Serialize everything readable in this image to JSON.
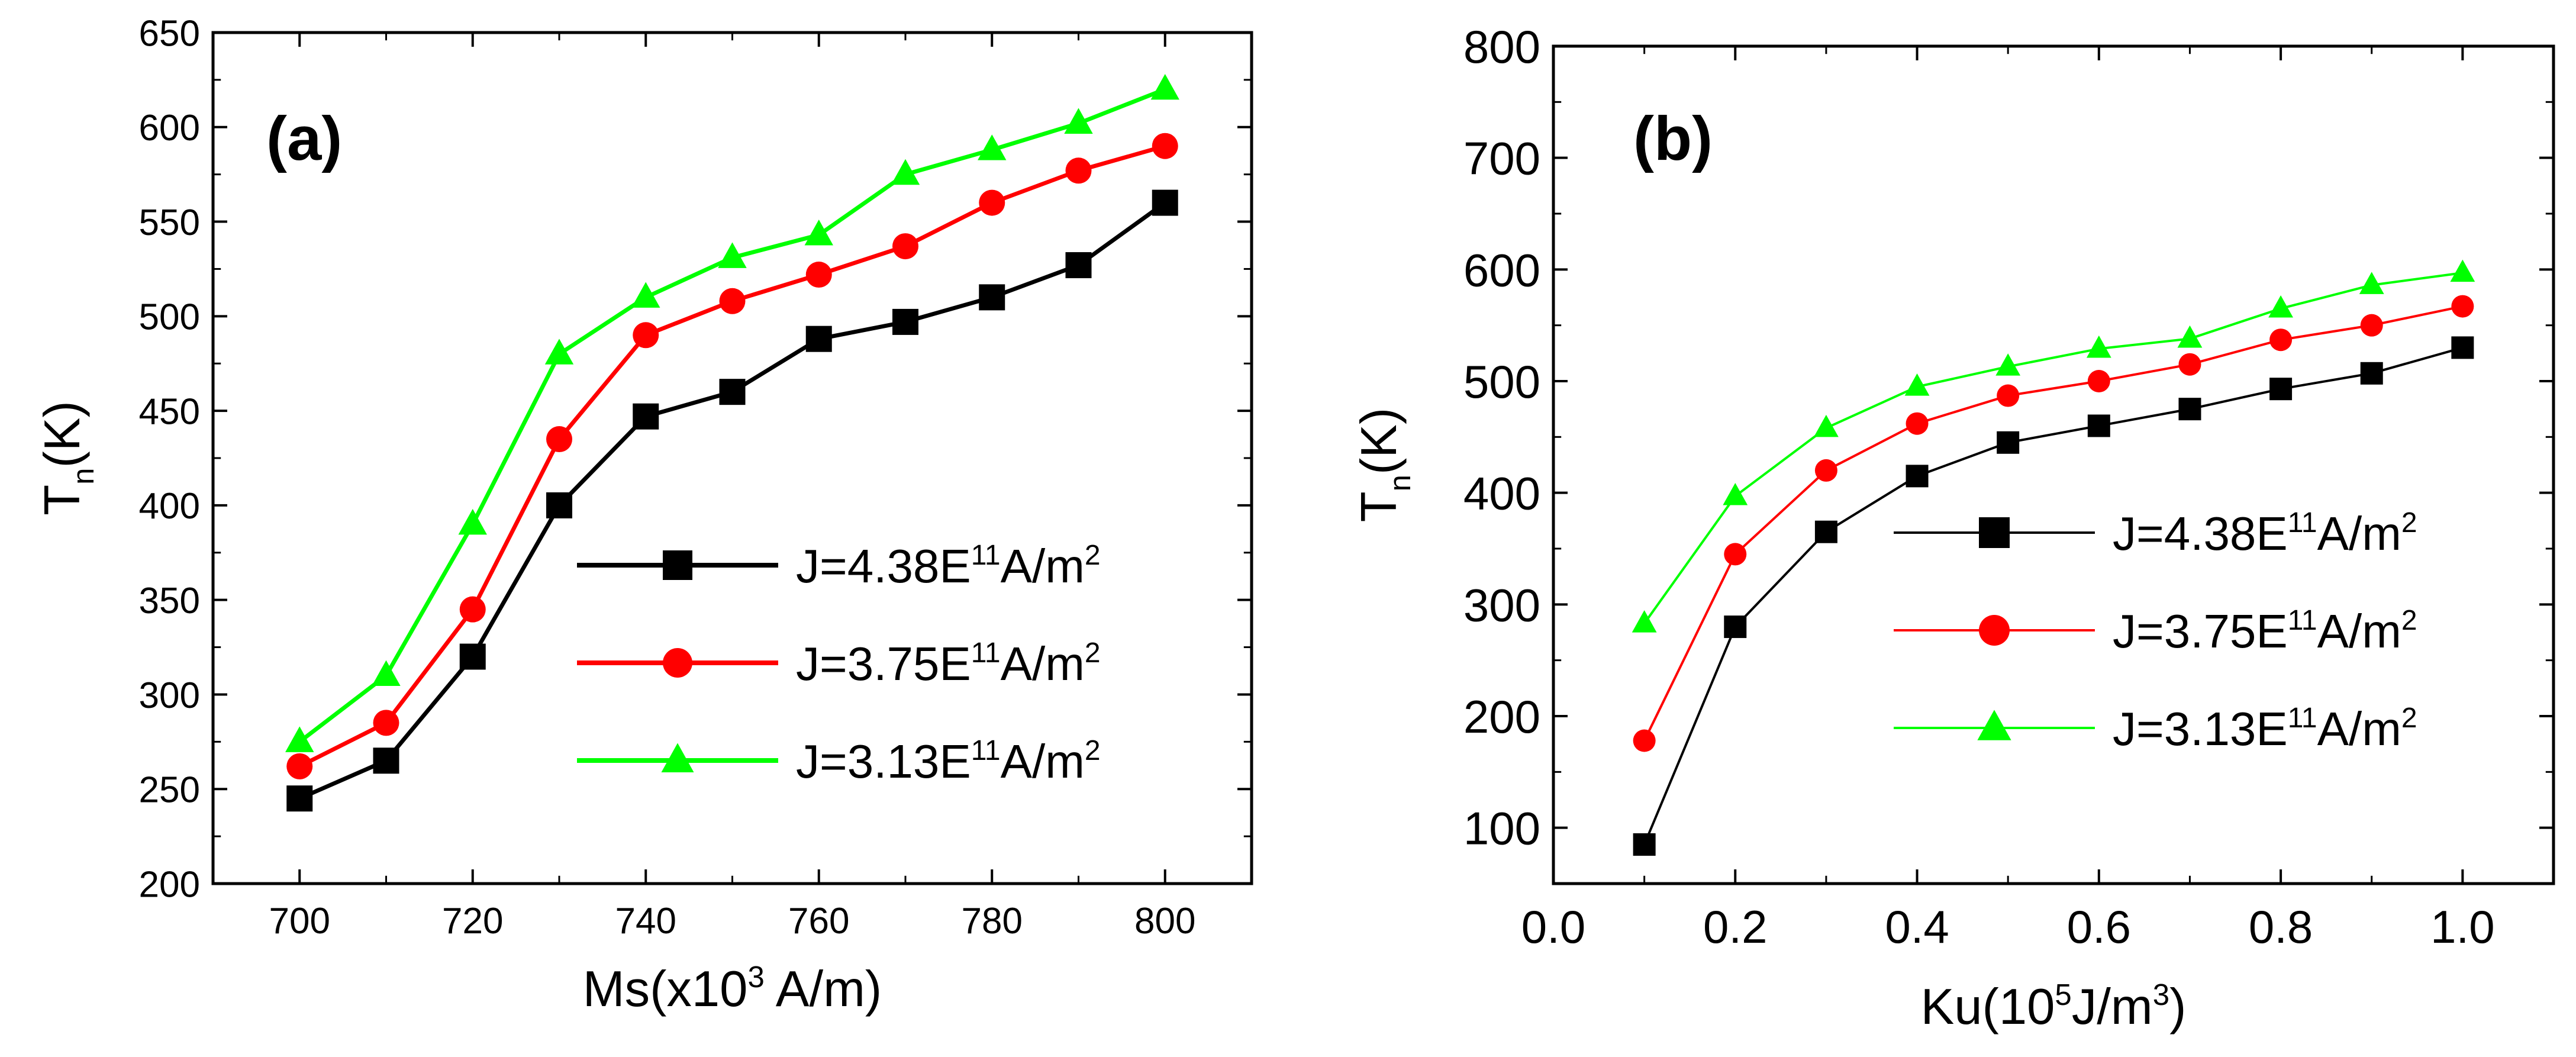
{
  "chart_data": [
    {
      "type": "line",
      "panel_label": "(a)",
      "xlabel": {
        "prefix": "Ms(x10",
        "sup": "3",
        "suffix": " A/m)"
      },
      "ylabel": {
        "main": "T",
        "sub": "n",
        "suffix": "(K)"
      },
      "xlim": [
        690,
        810
      ],
      "ylim": [
        200,
        650
      ],
      "xticks": [
        700,
        720,
        740,
        760,
        780,
        800
      ],
      "yticks": [
        200,
        250,
        300,
        350,
        400,
        450,
        500,
        550,
        600,
        650
      ],
      "x": [
        700,
        710,
        720,
        730,
        740,
        750,
        760,
        770,
        780,
        790,
        800
      ],
      "legend_position": "bottom-right",
      "series": [
        {
          "name": "J=4.38E11A/m2",
          "legend": {
            "prefix": "J=4.38E",
            "sup1": "11",
            "mid": "A/m",
            "sup2": "2"
          },
          "color": "#000000",
          "marker": "square",
          "values": [
            245,
            265,
            320,
            400,
            447,
            460,
            488,
            497,
            510,
            527,
            560
          ]
        },
        {
          "name": "J=3.75E11A/m2",
          "legend": {
            "prefix": "J=3.75E",
            "sup1": "11",
            "mid": "A/m",
            "sup2": "2"
          },
          "color": "#ff0000",
          "marker": "circle",
          "values": [
            262,
            285,
            345,
            435,
            490,
            508,
            522,
            537,
            560,
            577,
            590
          ]
        },
        {
          "name": "J=3.13E11A/m2",
          "legend": {
            "prefix": "J=3.13E",
            "sup1": "11",
            "mid": "A/m",
            "sup2": "2"
          },
          "color": "#00ff00",
          "marker": "triangle",
          "values": [
            275,
            310,
            390,
            480,
            510,
            531,
            543,
            575,
            588,
            602,
            620
          ]
        }
      ]
    },
    {
      "type": "line",
      "panel_label": "(b)",
      "xlabel": {
        "prefix": "Ku(10",
        "sup": "5",
        "suffix": "J/m",
        "sup2": "3",
        "suffix2": ")"
      },
      "ylabel": {
        "main": "T",
        "sub": "n",
        "suffix": "(K)"
      },
      "xlim": [
        0.0,
        1.1
      ],
      "ylim": [
        50,
        800
      ],
      "xticks": [
        "0.0",
        "0.2",
        "0.4",
        "0.6",
        "0.8",
        "1.0"
      ],
      "yticks": [
        100,
        200,
        300,
        400,
        500,
        600,
        700,
        800
      ],
      "x": [
        0.1,
        0.2,
        0.3,
        0.4,
        0.5,
        0.6,
        0.7,
        0.8,
        0.9,
        1.0
      ],
      "legend_position": "center-right",
      "series": [
        {
          "name": "J=4.38E11A/m2",
          "legend": {
            "prefix": "J=4.38E",
            "sup1": "11",
            "mid": "A/m",
            "sup2": "2"
          },
          "color": "#000000",
          "marker": "square",
          "values": [
            85,
            280,
            365,
            415,
            445,
            460,
            475,
            493,
            507,
            530
          ]
        },
        {
          "name": "J=3.75E11A/m2",
          "legend": {
            "prefix": "J=3.75E",
            "sup1": "11",
            "mid": "A/m",
            "sup2": "2"
          },
          "color": "#ff0000",
          "marker": "circle",
          "values": [
            178,
            345,
            420,
            462,
            487,
            500,
            515,
            537,
            550,
            567
          ]
        },
        {
          "name": "J=3.13E11A/m2",
          "legend": {
            "prefix": "J=3.13E",
            "sup1": "11",
            "mid": "A/m",
            "sup2": "2"
          },
          "color": "#00ff00",
          "marker": "triangle",
          "values": [
            283,
            397,
            458,
            495,
            513,
            529,
            538,
            565,
            586,
            597
          ]
        }
      ]
    }
  ]
}
